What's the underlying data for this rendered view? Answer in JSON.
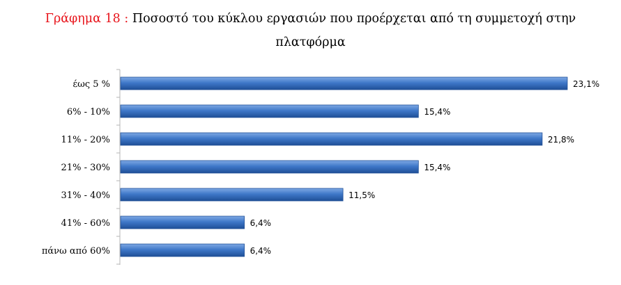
{
  "chart_data": {
    "type": "bar",
    "orientation": "horizontal",
    "title_prefix": "Γράφημα 18 :",
    "title_line1": "Ποσοστό του κύκλου εργασιών που προέρχεται από τη συμμετοχή στην",
    "title_line2": "πλατφόρμα",
    "categories": [
      "έως 5 %",
      "6% - 10%",
      "11% - 20%",
      "21% - 30%",
      "31% - 40%",
      "41% - 60%",
      "πάνω από 60%"
    ],
    "values": [
      23.1,
      15.4,
      21.8,
      15.4,
      11.5,
      6.4,
      6.4
    ],
    "value_labels": [
      "23,1%",
      "15,4%",
      "21,8%",
      "15,4%",
      "11,5%",
      "6,4%",
      "6,4%"
    ],
    "xlim": [
      0,
      23.1
    ],
    "grid": false,
    "legend": "none",
    "colors": {
      "bar_light": "#7fa9e4",
      "bar_mid": "#3f78c9",
      "bar_dark": "#1f4f97",
      "title_prefix": "#e8141b"
    }
  }
}
